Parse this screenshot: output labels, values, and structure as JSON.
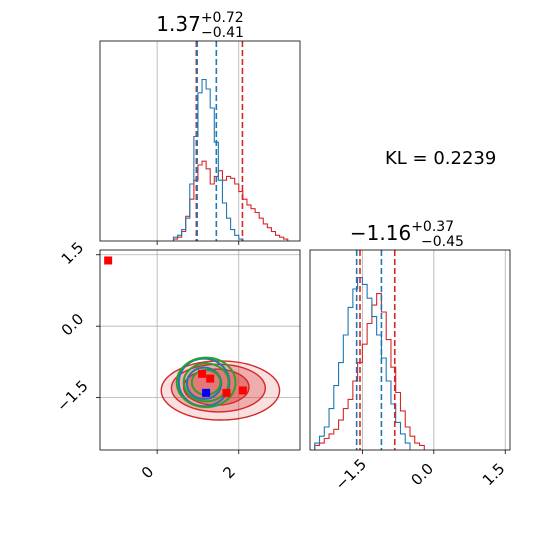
{
  "chart_data": {
    "type": "corner",
    "annotation": "KL = 0.2239",
    "colors": {
      "blue": "#1f77b4",
      "red": "#d62728",
      "green": "#2ca02c",
      "red_marker": "#ff0000",
      "blue_marker": "#0000ff",
      "grid": "#b0b0b0"
    },
    "params": [
      {
        "median": "1.37",
        "plus": "+0.72",
        "minus": "−0.41",
        "range": [
          -1.4,
          3.5
        ]
      },
      {
        "median": "−1.16",
        "plus": "+0.37",
        "minus": "−0.45",
        "range": [
          -2.6,
          1.6
        ]
      }
    ],
    "ticks_x": {
      "values": [
        0,
        2
      ],
      "labels": [
        "0",
        "2"
      ]
    },
    "ticks_y": {
      "values": [
        1.5,
        0.0,
        -1.5
      ],
      "labels": [
        "1.5",
        "0.0",
        "−1.5"
      ]
    },
    "ticks_x2": {
      "values": [
        -1.5,
        0.0,
        1.5
      ],
      "labels": [
        "−1.5",
        "0.0",
        "1.5"
      ]
    },
    "hist1": {
      "blue_quantiles": [
        0.98,
        1.45
      ],
      "red_quantiles": [
        0.96,
        2.09
      ],
      "blue_bins": [
        [
          0.45,
          0.02
        ],
        [
          0.55,
          0.03
        ],
        [
          0.65,
          0.06
        ],
        [
          0.75,
          0.12
        ],
        [
          0.85,
          0.3
        ],
        [
          0.95,
          0.55
        ],
        [
          1.05,
          0.78
        ],
        [
          1.15,
          0.85
        ],
        [
          1.25,
          0.8
        ],
        [
          1.35,
          0.7
        ],
        [
          1.45,
          0.52
        ],
        [
          1.55,
          0.32
        ],
        [
          1.65,
          0.2
        ],
        [
          1.75,
          0.12
        ],
        [
          1.85,
          0.06
        ],
        [
          1.95,
          0.03
        ],
        [
          2.05,
          0.01
        ]
      ],
      "red_bins": [
        [
          0.45,
          0.01
        ],
        [
          0.55,
          0.02
        ],
        [
          0.65,
          0.05
        ],
        [
          0.75,
          0.13
        ],
        [
          0.85,
          0.22
        ],
        [
          0.95,
          0.32
        ],
        [
          1.05,
          0.4
        ],
        [
          1.15,
          0.42
        ],
        [
          1.25,
          0.38
        ],
        [
          1.35,
          0.3
        ],
        [
          1.45,
          0.34
        ],
        [
          1.55,
          0.37
        ],
        [
          1.65,
          0.32
        ],
        [
          1.75,
          0.34
        ],
        [
          1.85,
          0.33
        ],
        [
          1.95,
          0.3
        ],
        [
          2.05,
          0.26
        ],
        [
          2.15,
          0.22
        ],
        [
          2.25,
          0.19
        ],
        [
          2.35,
          0.17
        ],
        [
          2.45,
          0.15
        ],
        [
          2.55,
          0.12
        ],
        [
          2.65,
          0.09
        ],
        [
          2.75,
          0.07
        ],
        [
          2.85,
          0.05
        ],
        [
          2.95,
          0.03
        ],
        [
          3.05,
          0.02
        ],
        [
          3.15,
          0.01
        ]
      ]
    },
    "hist2": {
      "blue_quantiles": [
        -1.62,
        -1.1
      ],
      "red_quantiles": [
        -1.55,
        -0.82
      ],
      "blue_bins": [
        [
          -2.45,
          0.03
        ],
        [
          -2.35,
          0.06
        ],
        [
          -2.25,
          0.1
        ],
        [
          -2.15,
          0.18
        ],
        [
          -2.05,
          0.28
        ],
        [
          -1.95,
          0.38
        ],
        [
          -1.85,
          0.5
        ],
        [
          -1.75,
          0.62
        ],
        [
          -1.65,
          0.7
        ],
        [
          -1.55,
          0.75
        ],
        [
          -1.45,
          0.72
        ],
        [
          -1.35,
          0.66
        ],
        [
          -1.25,
          0.58
        ],
        [
          -1.15,
          0.5
        ],
        [
          -1.05,
          0.4
        ],
        [
          -0.95,
          0.3
        ],
        [
          -0.85,
          0.2
        ],
        [
          -0.75,
          0.12
        ],
        [
          -0.65,
          0.07
        ],
        [
          -0.55,
          0.03
        ]
      ],
      "red_bins": [
        [
          -2.45,
          0.02
        ],
        [
          -2.35,
          0.03
        ],
        [
          -2.25,
          0.05
        ],
        [
          -2.15,
          0.07
        ],
        [
          -2.05,
          0.09
        ],
        [
          -1.95,
          0.13
        ],
        [
          -1.85,
          0.18
        ],
        [
          -1.75,
          0.22
        ],
        [
          -1.65,
          0.3
        ],
        [
          -1.55,
          0.38
        ],
        [
          -1.45,
          0.46
        ],
        [
          -1.35,
          0.55
        ],
        [
          -1.25,
          0.63
        ],
        [
          -1.15,
          0.68
        ],
        [
          -1.05,
          0.6
        ],
        [
          -0.95,
          0.48
        ],
        [
          -0.85,
          0.36
        ],
        [
          -0.75,
          0.25
        ],
        [
          -0.65,
          0.17
        ],
        [
          -0.55,
          0.1
        ],
        [
          -0.45,
          0.06
        ],
        [
          -0.35,
          0.03
        ],
        [
          -0.25,
          0.02
        ]
      ]
    },
    "joint": {
      "red_filled_contours": [
        {
          "cx": 1.55,
          "cy": -1.35,
          "rx": 1.45,
          "ry": 0.62,
          "opacity": 0.25
        },
        {
          "cx": 1.5,
          "cy": -1.3,
          "rx": 1.15,
          "ry": 0.5,
          "opacity": 0.45
        },
        {
          "cx": 1.45,
          "cy": -1.28,
          "rx": 0.8,
          "ry": 0.38,
          "opacity": 0.65
        }
      ],
      "blue_contours": [
        {
          "cx": 1.15,
          "cy": -1.18,
          "rx": 0.62,
          "ry": 0.5
        },
        {
          "cx": 1.15,
          "cy": -1.2,
          "rx": 0.42,
          "ry": 0.33
        }
      ],
      "green_contours": [
        {
          "cx": 1.2,
          "cy": -1.18,
          "rx": 0.72,
          "ry": 0.52
        },
        {
          "cx": 1.2,
          "cy": -1.18,
          "rx": 0.55,
          "ry": 0.4
        },
        {
          "cx": 1.2,
          "cy": -1.18,
          "rx": 0.35,
          "ry": 0.26
        }
      ],
      "red_points": [
        [
          -1.2,
          1.38
        ],
        [
          1.1,
          -1.0
        ],
        [
          1.3,
          -1.1
        ],
        [
          1.7,
          -1.4
        ],
        [
          2.1,
          -1.35
        ]
      ],
      "blue_points": [
        [
          1.2,
          -1.4
        ]
      ]
    }
  }
}
